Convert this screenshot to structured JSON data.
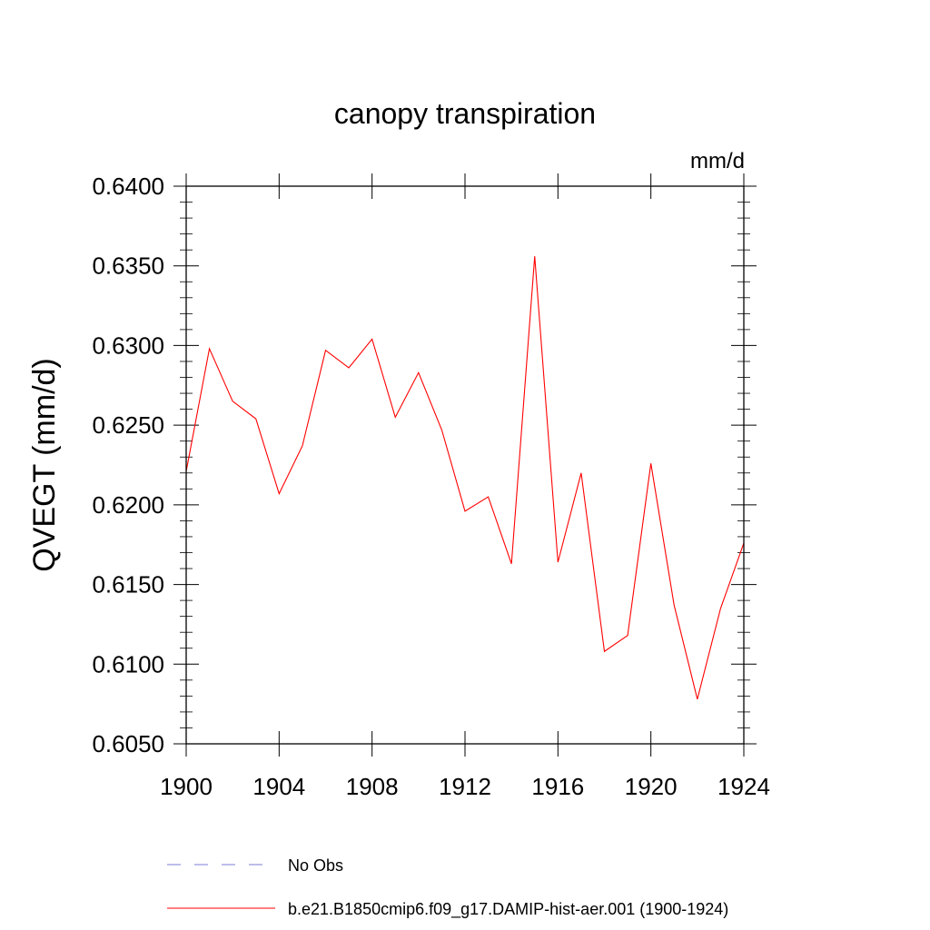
{
  "chart_data": {
    "type": "line",
    "title": "canopy transpiration",
    "units_label": "mm/d",
    "ylabel": "QVEGT  (mm/d)",
    "xlabel": "",
    "xlim": [
      1900,
      1924
    ],
    "ylim": [
      0.605,
      0.64
    ],
    "x_ticks": [
      "1900",
      "1904",
      "1908",
      "1912",
      "1916",
      "1920",
      "1924"
    ],
    "y_ticks": [
      "0.6050",
      "0.6100",
      "0.6150",
      "0.6200",
      "0.6250",
      "0.6300",
      "0.6350",
      "0.6400"
    ],
    "grid": false,
    "legend_position": "bottom",
    "x": [
      1900,
      1901,
      1902,
      1903,
      1904,
      1905,
      1906,
      1907,
      1908,
      1909,
      1910,
      1911,
      1912,
      1913,
      1914,
      1915,
      1916,
      1917,
      1918,
      1919,
      1920,
      1921,
      1922,
      1923,
      1924
    ],
    "series": [
      {
        "name": "b.e21.B1850cmip6.f09_g17.DAMIP-hist-aer.001 (1900-1924)",
        "color": "#ff0000",
        "values": [
          0.6221,
          0.6298,
          0.6265,
          0.6254,
          0.6207,
          0.6237,
          0.6297,
          0.6286,
          0.6304,
          0.6255,
          0.6283,
          0.6247,
          0.6196,
          0.6205,
          0.6163,
          0.6356,
          0.6164,
          0.622,
          0.6108,
          0.6118,
          0.6226,
          0.6137,
          0.6078,
          0.6135,
          0.6176
        ]
      }
    ],
    "legend": [
      {
        "label": "No Obs",
        "color": "#7b7bd6",
        "dash": "dashed"
      },
      {
        "label": "b.e21.B1850cmip6.f09_g17.DAMIP-hist-aer.001 (1900-1924)",
        "color": "#ff0000",
        "dash": "solid"
      }
    ]
  }
}
